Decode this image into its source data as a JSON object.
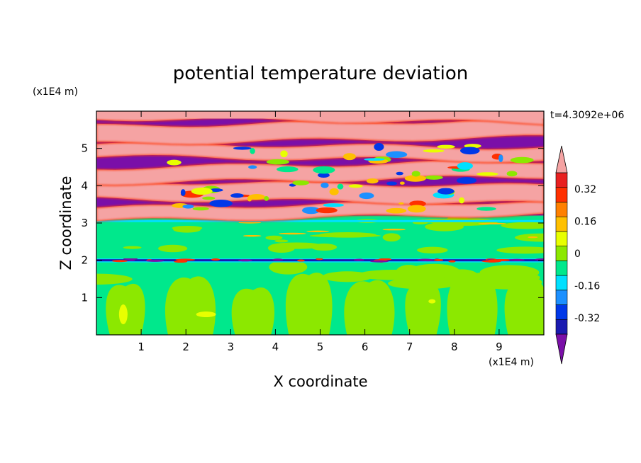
{
  "chart_data": {
    "type": "heatmap",
    "title": "potential temperature deviation",
    "xlabel": "X coordinate",
    "ylabel": "Z coordinate",
    "x_unit": "(x1E4 m)",
    "y_unit": "(x1E4 m)",
    "time_label": "t=4.3092e+06",
    "xlim": [
      0,
      10
    ],
    "ylim": [
      0,
      6
    ],
    "x_ticks": [
      1,
      2,
      3,
      4,
      5,
      6,
      7,
      8,
      9
    ],
    "y_ticks": [
      1,
      2,
      3,
      4,
      5
    ],
    "colorbar": {
      "levels": [
        -0.48,
        -0.4,
        -0.32,
        -0.24,
        -0.16,
        -0.08,
        0,
        0.08,
        0.16,
        0.24,
        0.32,
        0.4,
        0.48
      ],
      "tick_labels": [
        "-0.32",
        "-0.16",
        "0",
        "0.16",
        "0.32"
      ],
      "tick_values": [
        -0.32,
        -0.16,
        0,
        0.16,
        0.32
      ],
      "colors": [
        "#7a0fa8",
        "#1a1ab0",
        "#0038e8",
        "#1c90ff",
        "#00e0ff",
        "#00e88c",
        "#8ce800",
        "#e8ff00",
        "#ffc000",
        "#ff8000",
        "#ff3000",
        "#e82020",
        "#f5a3a3"
      ],
      "extend": "both"
    },
    "regions": {
      "lower_layer": {
        "z_range": [
          0,
          2.0
        ],
        "dominant_values": [
          0.04,
          -0.04
        ]
      },
      "interface": {
        "z": 2.0,
        "value_range": [
          -0.48,
          0.48
        ]
      },
      "middle_layer": {
        "z_range": [
          2.0,
          3.2
        ],
        "dominant_values": [
          -0.04,
          0.04
        ]
      },
      "upper_layer": {
        "z_range": [
          3.2,
          6.0
        ],
        "dominant_values": [
          0.48,
          -0.48
        ]
      }
    }
  }
}
